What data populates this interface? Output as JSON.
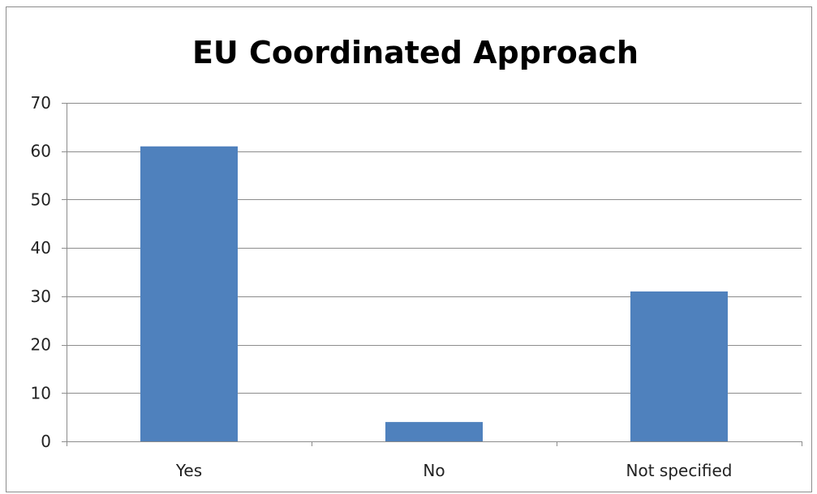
{
  "chart_data": {
    "type": "bar",
    "title": "EU Coordinated Approach",
    "categories": [
      "Yes",
      "No",
      "Not specified"
    ],
    "values": [
      61,
      4,
      31
    ],
    "ylim": [
      0,
      70
    ],
    "yticks": [
      0,
      10,
      20,
      30,
      40,
      50,
      60,
      70
    ],
    "grid": true,
    "legend": "none",
    "colors": {
      "bar": "#4f81bd",
      "grid": "#8c8c8c",
      "axis": "#8c8c8c"
    }
  }
}
